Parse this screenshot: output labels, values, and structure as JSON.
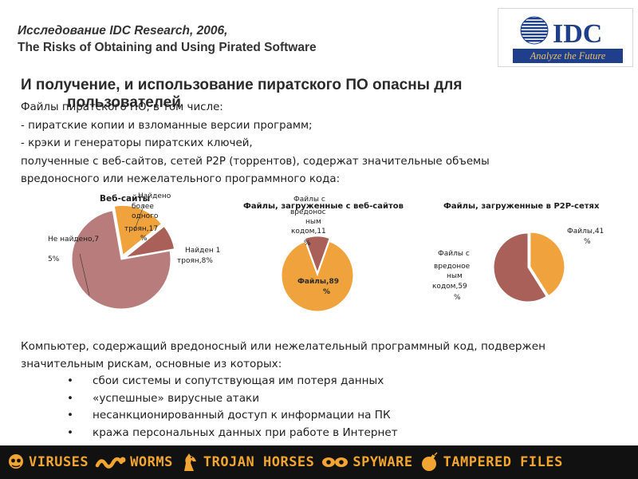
{
  "header": {
    "line1": "Исследование IDC Research, 2006,",
    "line2": "The Risks of Obtaining and Using Pirated Software"
  },
  "logo": {
    "text": "IDC",
    "tagline": "Analyze the Future"
  },
  "heading": {
    "line1": "И получение, и использование пиратского ПО опасны для",
    "line2": "пользователей"
  },
  "intro": {
    "lines": [
      "Файлы пиратского ПО, в том числе:",
      "- пиратские копии и взломанные версии программ;",
      "- крэки и генераторы пиратских ключей,",
      "полученные с веб-сайтов, сетей P2P (торрентов), содержат значительные объемы",
      "вредоносного или нежелательного программного кода:"
    ]
  },
  "colors": {
    "slice_tan": "#f0a33c",
    "slice_rose": "#b87c7c",
    "slice_dark": "#a86058",
    "footer_text": "#f2a530"
  },
  "chart_data": [
    {
      "type": "pie",
      "title": "Веб-сайты",
      "slices": [
        {
          "label": "Не найдено,7",
          "label2": "5%",
          "value": 75
        },
        {
          "label": "Найдено более одного троян,17 %",
          "value": 17
        },
        {
          "label": "Найден 1 троян,8%",
          "value": 8
        }
      ]
    },
    {
      "type": "pie",
      "title": "Файлы, загруженные с веб-сайтов",
      "slices": [
        {
          "label": "Файлы,89 %",
          "value": 89
        },
        {
          "label": "Файлы с вредоносным кодом,11 %",
          "value": 11
        }
      ]
    },
    {
      "type": "pie",
      "title": "Файлы, загруженные в P2P-сетях",
      "slices": [
        {
          "label": "Файлы,41 %",
          "value": 41
        },
        {
          "label": "Файлы с вредоносным кодом,59 %",
          "value": 59
        }
      ]
    }
  ],
  "risk": {
    "intro_line1": "Компьютер, содержащий вредоносный или нежелательный программный код, подвержен",
    "intro_line2": "значительным рискам, основные из которых:",
    "bullet": "•",
    "items": [
      "сбои системы и сопутствующая им потеря данных",
      "«успешные» вирусные атаки",
      "несанкционированный доступ к информации на ПК",
      "кража персональных данных при работе в Интернет"
    ]
  },
  "footer": {
    "items": [
      {
        "icon": "skull-icon",
        "label": "VIRUSES"
      },
      {
        "icon": "worm-icon",
        "label": "WORMS"
      },
      {
        "icon": "horse-icon",
        "label": "TROJAN HORSES"
      },
      {
        "icon": "eyes-icon",
        "label": "SPYWARE"
      },
      {
        "icon": "bomb-icon",
        "label": "TAMPERED FILES"
      }
    ]
  }
}
